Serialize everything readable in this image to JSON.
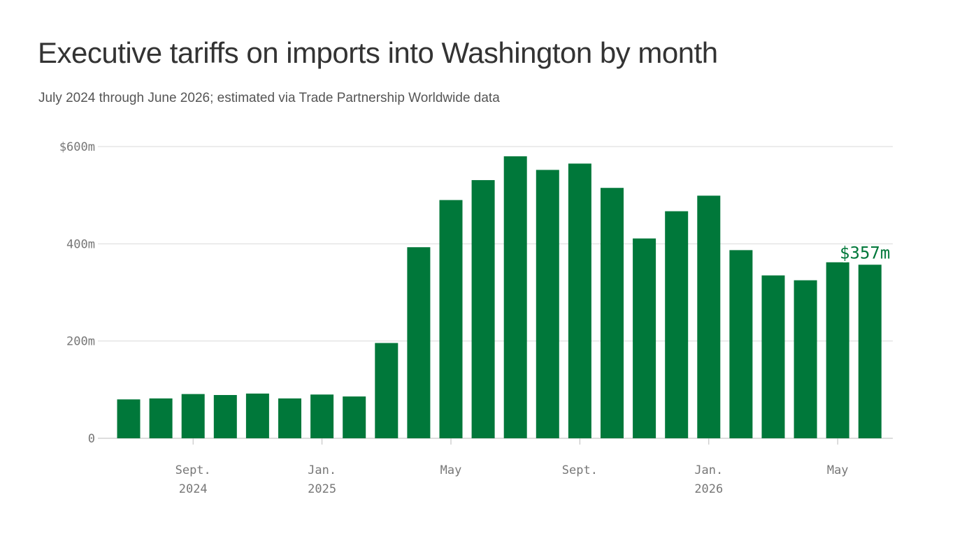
{
  "title": "Executive tariffs on imports into Washington by month",
  "subtitle": "July 2024 through June 2026; estimated via Trade Partnership Worldwide data",
  "colors": {
    "bar": "#00783a",
    "grid": "#d9d9d9",
    "axis": "#bbbbbb",
    "tick_text": "#777777",
    "label": "#00783a"
  },
  "chart_data": {
    "type": "bar",
    "categories": [
      "2024-07",
      "2024-08",
      "2024-09",
      "2024-10",
      "2024-11",
      "2024-12",
      "2025-01",
      "2025-02",
      "2025-03",
      "2025-04",
      "2025-05",
      "2025-06",
      "2025-07",
      "2025-08",
      "2025-09",
      "2025-10",
      "2025-11",
      "2025-12",
      "2026-01",
      "2026-02",
      "2026-03",
      "2026-04",
      "2026-05",
      "2026-06"
    ],
    "values": [
      80,
      82,
      91,
      89,
      92,
      82,
      90,
      86,
      196,
      393,
      490,
      531,
      580,
      552,
      565,
      515,
      411,
      467,
      499,
      387,
      335,
      325,
      362,
      357
    ],
    "unit": "millions of dollars",
    "ylim": [
      0,
      600
    ],
    "yticks": [
      {
        "value": 0,
        "label": "0"
      },
      {
        "value": 200,
        "label": "200m"
      },
      {
        "value": 400,
        "label": "400m"
      },
      {
        "value": 600,
        "label": "$600m"
      }
    ],
    "xticks": [
      {
        "index": 2,
        "month": "Sept.",
        "year": "2024"
      },
      {
        "index": 6,
        "month": "Jan.",
        "year": "2025"
      },
      {
        "index": 10,
        "month": "May",
        "year": ""
      },
      {
        "index": 14,
        "month": "Sept.",
        "year": ""
      },
      {
        "index": 18,
        "month": "Jan.",
        "year": "2026"
      },
      {
        "index": 22,
        "month": "May",
        "year": ""
      }
    ],
    "annotation": {
      "index": 23,
      "label": "$357m"
    },
    "grid": true,
    "legend": "none"
  }
}
